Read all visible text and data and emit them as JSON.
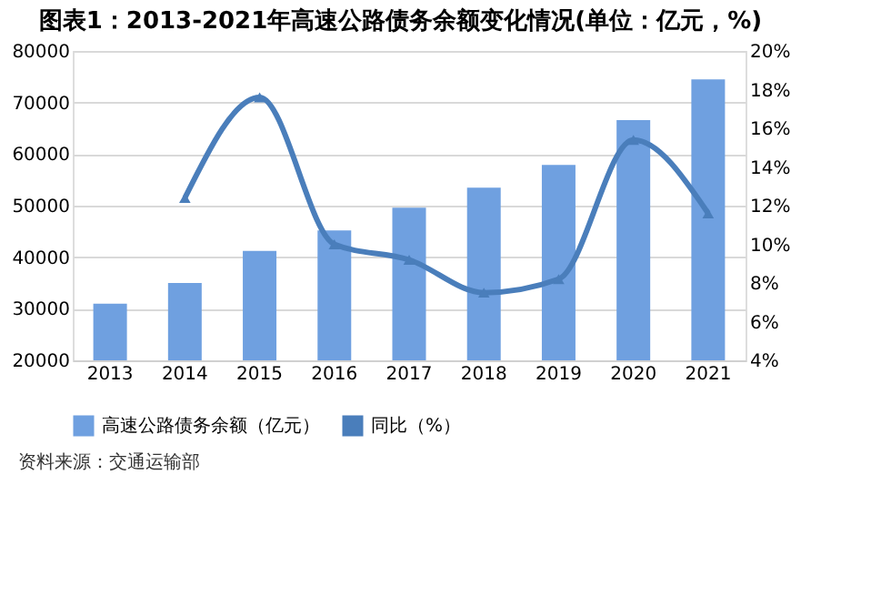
{
  "chart_data": {
    "type": "bar",
    "title": "图表1：2013-2021年高速公路债务余额变化情况(单位：亿元，%)",
    "categories": [
      "2013",
      "2014",
      "2015",
      "2016",
      "2017",
      "2018",
      "2019",
      "2020",
      "2021"
    ],
    "series": [
      {
        "name": "高速公路债务余额（亿元）",
        "color": "#6fa0e0",
        "values": [
          31000,
          35000,
          41200,
          45200,
          49600,
          53500,
          57900,
          66600,
          74500
        ]
      },
      {
        "name": "同比（%）",
        "type": "line",
        "axis": "y2",
        "color": "#4a7ebb",
        "marker": "triangle",
        "values": [
          null,
          12.4,
          17.6,
          10.0,
          9.2,
          7.5,
          8.2,
          15.4,
          11.6
        ]
      }
    ],
    "ylim": [
      20000,
      80000
    ],
    "yticks": [
      20000,
      30000,
      40000,
      50000,
      60000,
      70000,
      80000
    ],
    "y2lim": [
      4,
      20
    ],
    "y2ticks": [
      {
        "value": 4,
        "label": "4%"
      },
      {
        "value": 6,
        "label": "6%"
      },
      {
        "value": 8,
        "label": "8%"
      },
      {
        "value": 10,
        "label": "10%"
      },
      {
        "value": 12,
        "label": "12%"
      },
      {
        "value": 14,
        "label": "14%"
      },
      {
        "value": 16,
        "label": "16%"
      },
      {
        "value": 18,
        "label": "18%"
      },
      {
        "value": 20,
        "label": "20%"
      }
    ],
    "grid": "y",
    "legend": "bottom",
    "annotations": [
      "资料来源：交通运输部"
    ]
  }
}
